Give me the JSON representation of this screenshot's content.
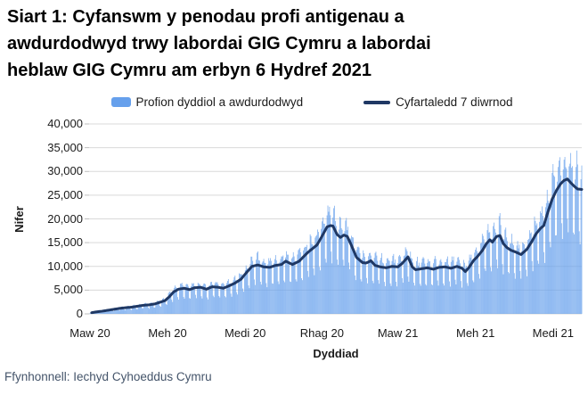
{
  "header": {
    "title_lines": [
      "Siart 1: Cyfanswm y penodau profi antigenau a",
      "awdurdodwyd trwy labordai GIG Cymru a labordai",
      "heblaw GIG Cymru am erbyn 6 Hydref 2021"
    ]
  },
  "source": "Ffynhonnell: Iechyd Cyhoeddus Cymru",
  "colors": {
    "bar": "#66A0EC",
    "line": "#1F3864",
    "grid": "#D9D9D9",
    "axis_text": "#1a1a1a",
    "source_text": "#44546A"
  },
  "legend": {
    "items": [
      {
        "label": "Profion dyddiol a awdurdodwyd",
        "swatch": "bar-swatch"
      },
      {
        "label": "Cyfartaledd 7 diwrnod",
        "swatch": "line-swatch"
      }
    ]
  },
  "chart_data": {
    "type": "bar",
    "overlay": "line",
    "title": "Siart 1: Cyfanswm y penodau profi antigenau a awdurdodwyd trwy labordai GIG Cymru a labordai heblaw GIG Cymru am erbyn 6 Hydref 2021",
    "xlabel": "Dyddiad",
    "ylabel": "Nifer",
    "ylim": [
      0,
      40000
    ],
    "ytick_step": 5000,
    "ytick_labels": [
      "0",
      "5,000",
      "10,000",
      "15,000",
      "20,000",
      "25,000",
      "30,000",
      "35,000",
      "40,000"
    ],
    "grid": "horizontal",
    "legend_position": "top",
    "x_start_date": "Maw 2020",
    "x_end_date": "6 Hydref 2021",
    "x_span_days": 583,
    "xticks": [
      {
        "day": 0,
        "label": "Maw 20"
      },
      {
        "day": 92,
        "label": "Meh 20"
      },
      {
        "day": 184,
        "label": "Medi 20"
      },
      {
        "day": 275,
        "label": "Rhag 20"
      },
      {
        "day": 365,
        "label": "Maw 21"
      },
      {
        "day": 457,
        "label": "Meh 21"
      },
      {
        "day": 549,
        "label": "Medi 21"
      }
    ],
    "series": [
      {
        "name": "Profion dyddiol a awdurdodwyd",
        "type": "bar",
        "weekly_pattern": [
          0.6,
          1.08,
          1.18,
          1.22,
          1.16,
          1.08,
          0.68
        ],
        "max_value": 34400
      },
      {
        "name": "Cyfartaledd 7 diwrnod",
        "type": "line",
        "anchors": [
          [
            2,
            250
          ],
          [
            7,
            400
          ],
          [
            14,
            550
          ],
          [
            21,
            750
          ],
          [
            28,
            950
          ],
          [
            35,
            1150
          ],
          [
            42,
            1300
          ],
          [
            49,
            1400
          ],
          [
            56,
            1600
          ],
          [
            63,
            1800
          ],
          [
            70,
            1900
          ],
          [
            77,
            2100
          ],
          [
            84,
            2500
          ],
          [
            89,
            2800
          ],
          [
            94,
            3600
          ],
          [
            99,
            4600
          ],
          [
            105,
            5200
          ],
          [
            112,
            5400
          ],
          [
            118,
            5100
          ],
          [
            124,
            5500
          ],
          [
            131,
            5600
          ],
          [
            138,
            5200
          ],
          [
            145,
            5700
          ],
          [
            152,
            5600
          ],
          [
            158,
            5400
          ],
          [
            165,
            5900
          ],
          [
            172,
            6500
          ],
          [
            179,
            7300
          ],
          [
            186,
            8800
          ],
          [
            192,
            10000
          ],
          [
            199,
            10300
          ],
          [
            206,
            9900
          ],
          [
            213,
            9800
          ],
          [
            220,
            10200
          ],
          [
            227,
            10400
          ],
          [
            232,
            11100
          ],
          [
            240,
            10400
          ],
          [
            248,
            11100
          ],
          [
            258,
            12900
          ],
          [
            269,
            14500
          ],
          [
            274,
            16000
          ],
          [
            281,
            18300
          ],
          [
            285,
            18600
          ],
          [
            288,
            18500
          ],
          [
            293,
            16700
          ],
          [
            297,
            16100
          ],
          [
            301,
            16600
          ],
          [
            305,
            16300
          ],
          [
            309,
            14800
          ],
          [
            316,
            11900
          ],
          [
            323,
            10800
          ],
          [
            327,
            10700
          ],
          [
            330,
            10900
          ],
          [
            333,
            11200
          ],
          [
            338,
            10200
          ],
          [
            344,
            9900
          ],
          [
            351,
            9700
          ],
          [
            358,
            10000
          ],
          [
            365,
            9900
          ],
          [
            370,
            10600
          ],
          [
            377,
            12000
          ],
          [
            382,
            9900
          ],
          [
            386,
            9300
          ],
          [
            393,
            9500
          ],
          [
            400,
            9700
          ],
          [
            407,
            9400
          ],
          [
            414,
            9800
          ],
          [
            421,
            9900
          ],
          [
            428,
            9600
          ],
          [
            435,
            10000
          ],
          [
            441,
            9600
          ],
          [
            445,
            8900
          ],
          [
            449,
            9700
          ],
          [
            455,
            11300
          ],
          [
            459,
            12000
          ],
          [
            465,
            13300
          ],
          [
            470,
            14800
          ],
          [
            474,
            15600
          ],
          [
            477,
            15100
          ],
          [
            482,
            16300
          ],
          [
            486,
            16500
          ],
          [
            490,
            14800
          ],
          [
            494,
            14000
          ],
          [
            499,
            13400
          ],
          [
            505,
            13000
          ],
          [
            511,
            12500
          ],
          [
            518,
            13600
          ],
          [
            524,
            15300
          ],
          [
            529,
            16900
          ],
          [
            534,
            18000
          ],
          [
            538,
            18600
          ],
          [
            543,
            21500
          ],
          [
            548,
            24200
          ],
          [
            553,
            26000
          ],
          [
            558,
            27400
          ],
          [
            562,
            28100
          ],
          [
            566,
            28400
          ],
          [
            570,
            27600
          ],
          [
            574,
            26900
          ],
          [
            578,
            26300
          ],
          [
            583,
            26200
          ]
        ]
      }
    ]
  }
}
